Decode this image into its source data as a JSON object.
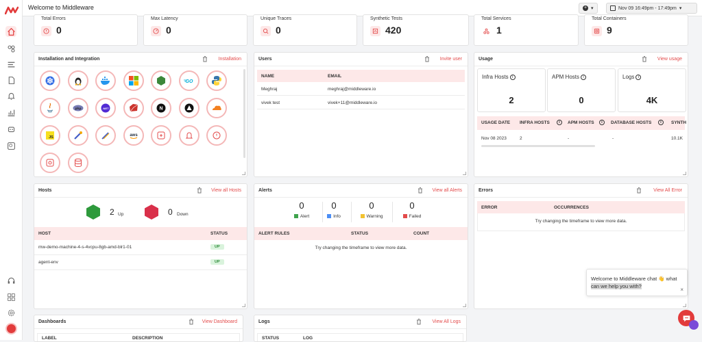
{
  "header": {
    "title": "Welcome to Middleware",
    "add_label": "+",
    "date_range": "Nov 09 16:49pm - 17:49pm"
  },
  "stats": [
    {
      "label": "Total Errors",
      "value": "0",
      "icon": "alert-circle-icon"
    },
    {
      "label": "Max Latency",
      "value": "0",
      "icon": "gauge-icon"
    },
    {
      "label": "Unique Traces",
      "value": "0",
      "icon": "trace-icon"
    },
    {
      "label": "Synthetic Tests",
      "value": "420",
      "icon": "synthetic-icon"
    },
    {
      "label": "Total Services",
      "value": "1",
      "icon": "services-icon"
    },
    {
      "label": "Total Containers",
      "value": "9",
      "icon": "container-icon"
    }
  ],
  "installation": {
    "title": "Installation and Integration",
    "link": "Installation",
    "icons": [
      "kubernetes-icon",
      "linux-icon",
      "docker-icon",
      "windows-icon",
      "nodejs-icon",
      "go-icon",
      "python-icon",
      "java-icon",
      "php-icon",
      "dotnet-icon",
      "ruby-icon",
      "nextjs-icon",
      "vercel-icon",
      "cloudflare-icon",
      "javascript-icon",
      "opentelemetry-icon",
      "datadog-icon",
      "aws-icon",
      "api-icon",
      "alert-bell-icon",
      "error-circle-icon",
      "custom-icon",
      "database-icon"
    ],
    "icon_text": {
      "js": "JS",
      "aws": "aws",
      "go": "GO",
      "php": "php",
      "net": ".NET",
      "n": "N"
    }
  },
  "users": {
    "title": "Users",
    "link": "Invite user",
    "col_name": "NAME",
    "col_email": "EMAIL",
    "rows": [
      {
        "name": "Meghraj",
        "email": "meghraj@middleware.io"
      },
      {
        "name": "vivek test",
        "email": "vivek+11@middleware.io"
      }
    ]
  },
  "usage": {
    "title": "Usage",
    "link": "View usage",
    "boxes": [
      {
        "label": "Infra Hosts",
        "value": "2"
      },
      {
        "label": "APM Hosts",
        "value": "0"
      },
      {
        "label": "Logs",
        "value": "4K"
      }
    ],
    "cols": [
      "USAGE DATE",
      "INFRA HOSTS",
      "APM HOSTS",
      "DATABASE HOSTS",
      "SYNTH"
    ],
    "row": [
      "Nov 08 2023",
      "2",
      "-",
      "-",
      "10.1K"
    ]
  },
  "hosts": {
    "title": "Hosts",
    "link": "View all Hosts",
    "up_count": "2",
    "up_label": "Up",
    "down_count": "0",
    "down_label": "Down",
    "col_host": "HOST",
    "col_status": "STATUS",
    "rows": [
      {
        "host": "mw-demo-machine-4-s-4vcpu-8gb-amd-blr1-01",
        "status": "UP"
      },
      {
        "host": "agent-env",
        "status": "UP"
      }
    ]
  },
  "alerts": {
    "title": "Alerts",
    "link": "View all Alerts",
    "counts": [
      {
        "n": "0",
        "label": "Alert",
        "color": "#3fa34d"
      },
      {
        "n": "0",
        "label": "Info",
        "color": "#4b8ef5"
      },
      {
        "n": "0",
        "label": "Warning",
        "color": "#f2c230"
      },
      {
        "n": "0",
        "label": "Failed",
        "color": "#e34b4b"
      }
    ],
    "col_rules": "ALERT RULES",
    "col_status": "STATUS",
    "col_count": "COUNT",
    "empty": "Try changing the timeframe to view more data."
  },
  "errors": {
    "title": "Errors",
    "link": "View All Error",
    "col_error": "ERROR",
    "col_occ": "OCCURRENCES",
    "empty": "Try changing the timeframe to view more data."
  },
  "dashboards": {
    "title": "Dashboards",
    "link": "View Dashboard",
    "col_label": "LABEL",
    "col_desc": "DESCRIPTION"
  },
  "logs": {
    "title": "Logs",
    "link": "View All Logs",
    "col_status": "STATUS",
    "col_log": "LOG"
  },
  "chat": {
    "text1": "Welcome to Middleware chat 👋 ",
    "text2": "what",
    "text3": "can we help you with?"
  }
}
